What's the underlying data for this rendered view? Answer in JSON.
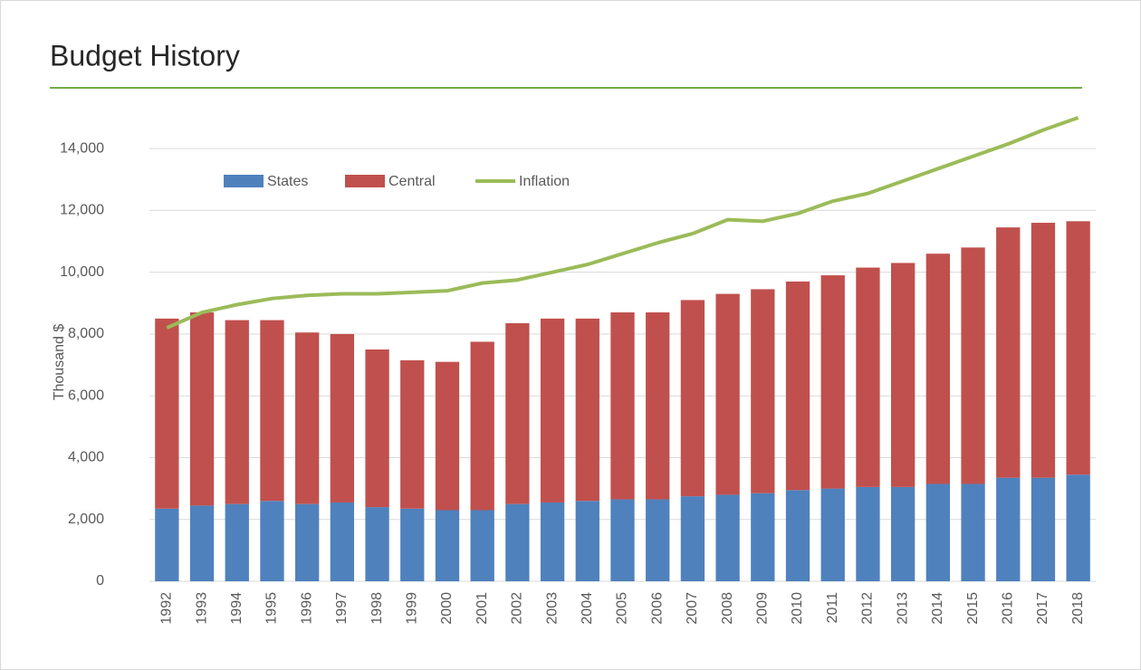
{
  "chart_data": {
    "type": "stacked-bar-line",
    "title": "Budget History",
    "y_label": "Thousand $",
    "categories": [
      "1992",
      "1993",
      "1994",
      "1995",
      "1996",
      "1997",
      "1998",
      "1999",
      "2000",
      "2001",
      "2002",
      "2003",
      "2004",
      "2005",
      "2006",
      "2007",
      "2008",
      "2009",
      "2010",
      "2011",
      "2012",
      "2013",
      "2014",
      "2015",
      "2016",
      "2017",
      "2018"
    ],
    "series": [
      {
        "name": "States",
        "type": "bar",
        "color": "#4f81bd",
        "values": [
          2350,
          2450,
          2500,
          2600,
          2500,
          2550,
          2400,
          2350,
          2300,
          2300,
          2500,
          2550,
          2600,
          2650,
          2650,
          2750,
          2800,
          2850,
          2950,
          3000,
          3050,
          3050,
          3150,
          3150,
          3350,
          3350,
          3450
        ]
      },
      {
        "name": "Central",
        "type": "bar",
        "color": "#c0504d",
        "values": [
          6150,
          6250,
          5950,
          5850,
          5550,
          5450,
          5100,
          4800,
          4800,
          5450,
          5850,
          5950,
          5900,
          6050,
          6050,
          6350,
          6500,
          6600,
          6750,
          6900,
          7100,
          7250,
          7450,
          7650,
          8100,
          8250,
          8200
        ]
      },
      {
        "name": "Inflation",
        "type": "line",
        "color": "#9bbb59",
        "values": [
          8200,
          8700,
          8950,
          9150,
          9250,
          9300,
          9300,
          9350,
          9400,
          9650,
          9750,
          10000,
          10250,
          10600,
          10950,
          11250,
          11700,
          11650,
          11900,
          12300,
          12550,
          12950,
          13350,
          13750,
          14150,
          14600,
          15000
        ]
      }
    ],
    "ylim": [
      0,
      15000
    ],
    "yticks": [
      0,
      {
        "value": 2000,
        "label": "2,000"
      },
      {
        "value": 4000,
        "label": "4,000"
      },
      {
        "value": 6000,
        "label": "6,000"
      },
      {
        "value": 8000,
        "label": "8,000"
      },
      {
        "value": 10000,
        "label": "10,000"
      },
      {
        "value": 12000,
        "label": "12,000"
      },
      {
        "value": 14000,
        "label": "14,000"
      }
    ],
    "grid": true
  }
}
